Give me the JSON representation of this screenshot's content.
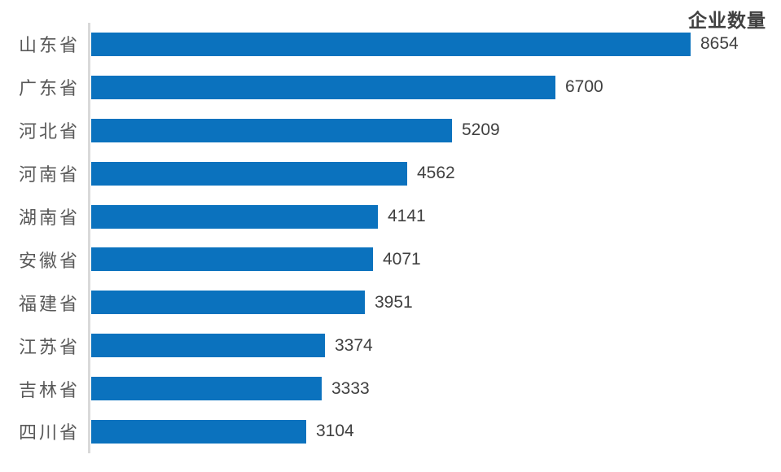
{
  "chart_data": {
    "type": "bar",
    "orientation": "horizontal",
    "title": "企业数量",
    "categories": [
      "山东省",
      "广东省",
      "河北省",
      "河南省",
      "湖南省",
      "安徽省",
      "福建省",
      "江苏省",
      "吉林省",
      "四川省"
    ],
    "values": [
      8654,
      6700,
      5209,
      4562,
      4141,
      4071,
      3951,
      3374,
      3333,
      3104
    ],
    "xlabel": "",
    "ylabel": "",
    "xlim": [
      0,
      8654
    ],
    "grid": false,
    "legend_position": "none",
    "bar_color": "#0B72BE",
    "axis_line_color": "#D9D9D9",
    "category_label_color": "#595959",
    "value_label_color": "#404040",
    "title_color": "#404040"
  }
}
